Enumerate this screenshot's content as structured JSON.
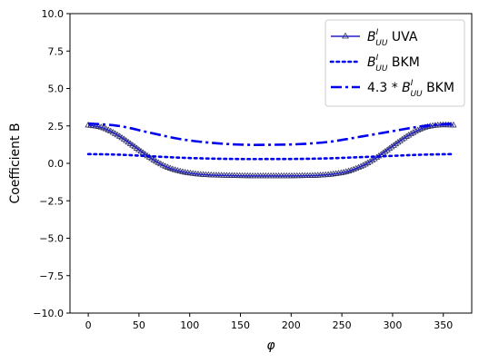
{
  "chart_data": {
    "type": "line",
    "xlabel": "φ",
    "ylabel": "Coefficient B",
    "xlim": [
      -18,
      378
    ],
    "ylim": [
      -10,
      10
    ],
    "xticks": [
      0,
      50,
      100,
      150,
      200,
      250,
      300,
      350
    ],
    "yticks": [
      -10.0,
      -7.5,
      -5.0,
      -2.5,
      0.0,
      2.5,
      5.0,
      7.5,
      10.0
    ],
    "ytick_labels": [
      "−10.0",
      "−7.5",
      "−5.0",
      "−2.5",
      "0.0",
      "2.5",
      "5.0",
      "7.5",
      "10.0"
    ],
    "grid": false,
    "legend_position": "top-right",
    "series": [
      {
        "name": "B^I_UU UVA",
        "legend_label": {
          "base": "B",
          "sup": "I",
          "sub": "UU",
          "suffix": " UVA"
        },
        "style": "solid-triangles",
        "color": "#2222cc",
        "x": [
          0,
          15,
          30,
          45,
          60,
          75,
          90,
          105,
          120,
          135,
          150,
          165,
          180,
          195,
          210,
          225,
          240,
          255,
          270,
          285,
          300,
          315,
          330,
          345,
          360
        ],
        "y": [
          2.55,
          2.36,
          1.84,
          1.14,
          0.42,
          -0.17,
          -0.52,
          -0.7,
          -0.78,
          -0.81,
          -0.83,
          -0.84,
          -0.84,
          -0.84,
          -0.83,
          -0.81,
          -0.73,
          -0.55,
          -0.17,
          0.42,
          1.14,
          1.84,
          2.36,
          2.55,
          2.55
        ]
      },
      {
        "name": "B^I_UU BKM",
        "legend_label": {
          "base": "B",
          "sup": "I",
          "sub": "UU",
          "suffix": " BKM"
        },
        "style": "dotted",
        "color": "#0000ee",
        "x": [
          0,
          30,
          60,
          90,
          120,
          150,
          180,
          210,
          240,
          270,
          300,
          330,
          360
        ],
        "y": [
          0.62,
          0.58,
          0.48,
          0.38,
          0.32,
          0.29,
          0.29,
          0.3,
          0.34,
          0.42,
          0.5,
          0.58,
          0.62
        ]
      },
      {
        "name": "4.3*B^I_UU BKM",
        "legend_label": {
          "prefix": "4.3 * ",
          "base": "B",
          "sup": "I",
          "sub": "UU",
          "suffix": " BKM"
        },
        "style": "dashdot",
        "color": "#0000ee",
        "x": [
          0,
          30,
          60,
          90,
          120,
          150,
          180,
          210,
          240,
          270,
          300,
          330,
          360
        ],
        "y": [
          2.66,
          2.5,
          2.06,
          1.63,
          1.38,
          1.25,
          1.24,
          1.29,
          1.46,
          1.8,
          2.15,
          2.49,
          2.66
        ]
      }
    ]
  }
}
